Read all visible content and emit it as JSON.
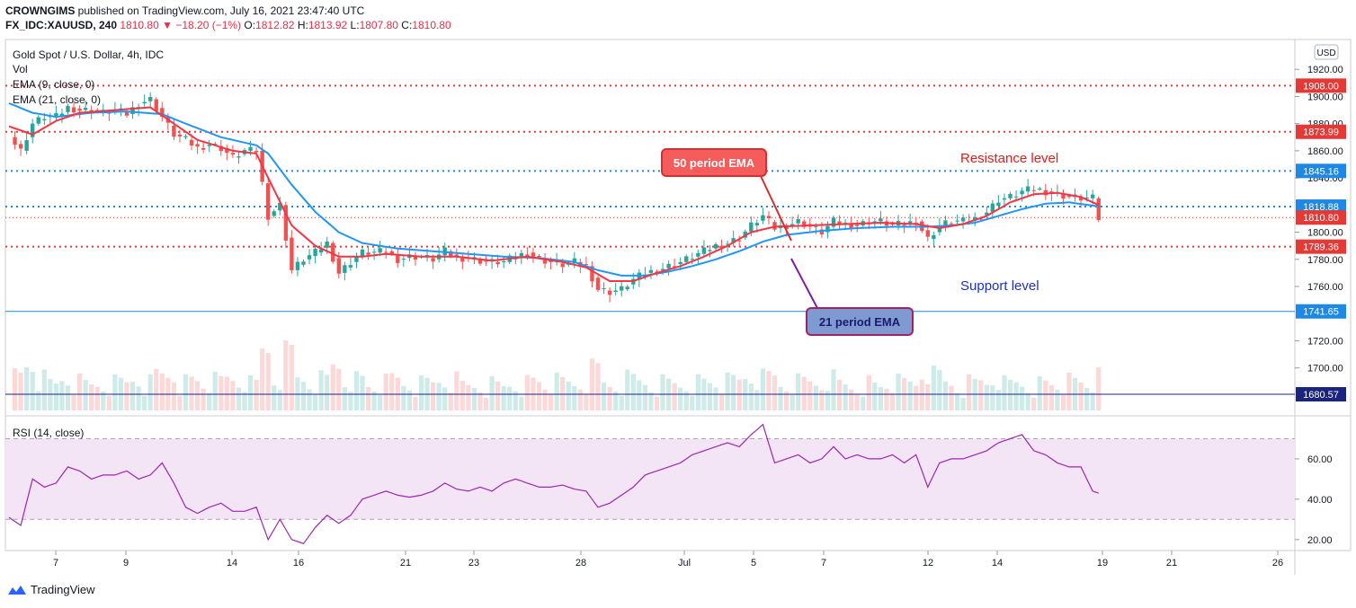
{
  "header": {
    "line1_author": "CROWNGIMS",
    "line1_rest": "published on TradingView.com, July 16, 2021 23:47:40 UTC",
    "symbol": "FX_IDC:XAUUSD, 240",
    "price": "1810.80",
    "change": "−18.20 (−1%)",
    "o_label": "O:",
    "o_value": "1812.82",
    "h_label": "H:",
    "h_value": "1813.92",
    "l_label": "L:",
    "l_value": "1807.80",
    "c_label": "C:",
    "c_value": "1810.80"
  },
  "legend": {
    "title": "Gold Spot / U.S. Dollar, 4h, IDC",
    "vol": "Vol",
    "ema9": "EMA (9, close, 0)",
    "ema21": "EMA (21, close, 0)",
    "rsi": "RSI (14, close)",
    "currency": "USD"
  },
  "annotations": {
    "ema50_label": "50 period EMA",
    "ema21_label": "21 period EMA",
    "resistance": "Resistance level",
    "support": "Support level"
  },
  "footer": {
    "brand": "TradingView"
  },
  "colors": {
    "up": "#26a69a",
    "down": "#ef5350",
    "ema_fast": "#f23645",
    "ema_slow": "#2196f3",
    "rsi": "#9c27b0",
    "rsi_band": "#f3e5f5",
    "level_red": "#e53935",
    "level_blue": "#1e88e5",
    "level_navy": "#1a237e",
    "annot_red": "#f75c5c",
    "annot_blue": "#7f9ad0"
  },
  "chart_data": {
    "type": "candlestick",
    "price_axis": {
      "min": 1670,
      "max": 1940,
      "ticks": [
        "1920.00",
        "1900.00",
        "1880.00",
        "1860.00",
        "1840.00",
        "1800.00",
        "1780.00",
        "1760.00",
        "1720.00",
        "1700.00"
      ],
      "tick_values": [
        1920,
        1900,
        1880,
        1860,
        1840,
        1800,
        1780,
        1760,
        1720,
        1700
      ]
    },
    "x_axis": {
      "labels": [
        "7",
        "9",
        "14",
        "16",
        "21",
        "23",
        "28",
        "Jul",
        "5",
        "7",
        "12",
        "14",
        "19",
        "21",
        "26"
      ]
    },
    "levels": [
      {
        "value": 1908.0,
        "label": "1908.00",
        "style": "dotted",
        "color": "red"
      },
      {
        "value": 1873.99,
        "label": "1873.99",
        "style": "dotted",
        "color": "red"
      },
      {
        "value": 1845.16,
        "label": "1845.16",
        "style": "dotted",
        "color": "blue"
      },
      {
        "value": 1818.88,
        "label": "1818.88",
        "style": "dotted",
        "color": "blue"
      },
      {
        "value": 1810.8,
        "label": "1810.80",
        "style": "dotted-thin",
        "color": "red"
      },
      {
        "value": 1789.36,
        "label": "1789.36",
        "style": "dotted",
        "color": "red"
      },
      {
        "value": 1741.65,
        "label": "1741.65",
        "style": "solid",
        "color": "blue"
      },
      {
        "value": 1680.57,
        "label": "1680.57",
        "style": "solid",
        "color": "navy"
      }
    ],
    "price_path": [
      [
        0,
        1870
      ],
      [
        2,
        1860
      ],
      [
        4,
        1880
      ],
      [
        6,
        1885
      ],
      [
        8,
        1885
      ],
      [
        10,
        1892
      ],
      [
        12,
        1890
      ],
      [
        14,
        1890
      ],
      [
        16,
        1888
      ],
      [
        18,
        1890
      ],
      [
        20,
        1887
      ],
      [
        22,
        1895
      ],
      [
        24,
        1898
      ],
      [
        26,
        1885
      ],
      [
        28,
        1872
      ],
      [
        30,
        1868
      ],
      [
        32,
        1862
      ],
      [
        34,
        1865
      ],
      [
        36,
        1862
      ],
      [
        38,
        1855
      ],
      [
        40,
        1860
      ],
      [
        42,
        1860
      ],
      [
        44,
        1812
      ],
      [
        46,
        1820
      ],
      [
        48,
        1772
      ],
      [
        50,
        1780
      ],
      [
        52,
        1785
      ],
      [
        54,
        1792
      ],
      [
        56,
        1770
      ],
      [
        58,
        1778
      ],
      [
        60,
        1785
      ],
      [
        62,
        1785
      ],
      [
        64,
        1786
      ],
      [
        66,
        1780
      ],
      [
        68,
        1782
      ],
      [
        70,
        1782
      ],
      [
        72,
        1780
      ],
      [
        74,
        1786
      ],
      [
        76,
        1781
      ],
      [
        78,
        1781
      ],
      [
        80,
        1779
      ],
      [
        82,
        1778
      ],
      [
        84,
        1778
      ],
      [
        86,
        1782
      ],
      [
        88,
        1785
      ],
      [
        90,
        1780
      ],
      [
        92,
        1778
      ],
      [
        94,
        1776
      ],
      [
        96,
        1778
      ],
      [
        98,
        1775
      ],
      [
        100,
        1758
      ],
      [
        102,
        1756
      ],
      [
        104,
        1758
      ],
      [
        106,
        1765
      ],
      [
        108,
        1770
      ],
      [
        110,
        1772
      ],
      [
        112,
        1775
      ],
      [
        114,
        1778
      ],
      [
        116,
        1782
      ],
      [
        118,
        1786
      ],
      [
        120,
        1790
      ],
      [
        122,
        1792
      ],
      [
        124,
        1796
      ],
      [
        126,
        1805
      ],
      [
        128,
        1812
      ],
      [
        130,
        1803
      ],
      [
        132,
        1805
      ],
      [
        134,
        1808
      ],
      [
        136,
        1804
      ],
      [
        138,
        1800
      ],
      [
        140,
        1808
      ],
      [
        142,
        1806
      ],
      [
        144,
        1805
      ],
      [
        146,
        1808
      ],
      [
        148,
        1808
      ],
      [
        150,
        1805
      ],
      [
        152,
        1806
      ],
      [
        154,
        1808
      ],
      [
        156,
        1795
      ],
      [
        158,
        1805
      ],
      [
        160,
        1808
      ],
      [
        162,
        1808
      ],
      [
        164,
        1810
      ],
      [
        166,
        1815
      ],
      [
        168,
        1824
      ],
      [
        170,
        1826
      ],
      [
        172,
        1830
      ],
      [
        174,
        1832
      ],
      [
        176,
        1830
      ],
      [
        178,
        1828
      ],
      [
        180,
        1826
      ],
      [
        182,
        1825
      ],
      [
        184,
        1825
      ],
      [
        185,
        1810
      ]
    ],
    "ema9_path": [
      [
        0,
        1878
      ],
      [
        4,
        1872
      ],
      [
        8,
        1882
      ],
      [
        12,
        1888
      ],
      [
        18,
        1890
      ],
      [
        24,
        1892
      ],
      [
        28,
        1880
      ],
      [
        32,
        1868
      ],
      [
        38,
        1860
      ],
      [
        42,
        1858
      ],
      [
        44,
        1840
      ],
      [
        48,
        1805
      ],
      [
        52,
        1790
      ],
      [
        56,
        1782
      ],
      [
        60,
        1782
      ],
      [
        64,
        1784
      ],
      [
        70,
        1782
      ],
      [
        76,
        1782
      ],
      [
        82,
        1779
      ],
      [
        88,
        1782
      ],
      [
        94,
        1778
      ],
      [
        98,
        1774
      ],
      [
        102,
        1764
      ],
      [
        106,
        1764
      ],
      [
        110,
        1770
      ],
      [
        114,
        1775
      ],
      [
        118,
        1782
      ],
      [
        122,
        1790
      ],
      [
        126,
        1800
      ],
      [
        130,
        1804
      ],
      [
        136,
        1805
      ],
      [
        142,
        1806
      ],
      [
        148,
        1807
      ],
      [
        154,
        1806
      ],
      [
        158,
        1803
      ],
      [
        162,
        1806
      ],
      [
        166,
        1812
      ],
      [
        170,
        1822
      ],
      [
        174,
        1828
      ],
      [
        178,
        1829
      ],
      [
        182,
        1826
      ],
      [
        185,
        1820
      ]
    ],
    "ema21_path": [
      [
        0,
        1895
      ],
      [
        4,
        1888
      ],
      [
        8,
        1885
      ],
      [
        14,
        1888
      ],
      [
        20,
        1889
      ],
      [
        26,
        1887
      ],
      [
        30,
        1880
      ],
      [
        36,
        1870
      ],
      [
        42,
        1864
      ],
      [
        44,
        1858
      ],
      [
        48,
        1835
      ],
      [
        52,
        1815
      ],
      [
        56,
        1800
      ],
      [
        60,
        1792
      ],
      [
        66,
        1788
      ],
      [
        72,
        1786
      ],
      [
        78,
        1784
      ],
      [
        84,
        1782
      ],
      [
        90,
        1781
      ],
      [
        96,
        1778
      ],
      [
        100,
        1772
      ],
      [
        104,
        1768
      ],
      [
        108,
        1768
      ],
      [
        112,
        1771
      ],
      [
        116,
        1775
      ],
      [
        120,
        1780
      ],
      [
        124,
        1786
      ],
      [
        128,
        1793
      ],
      [
        132,
        1798
      ],
      [
        138,
        1801
      ],
      [
        144,
        1803
      ],
      [
        150,
        1804
      ],
      [
        156,
        1804
      ],
      [
        160,
        1805
      ],
      [
        164,
        1807
      ],
      [
        168,
        1812
      ],
      [
        172,
        1817
      ],
      [
        176,
        1821
      ],
      [
        180,
        1822
      ],
      [
        185,
        1819
      ]
    ],
    "rsi": {
      "min": 15,
      "max": 80,
      "ticks": [
        "60.00",
        "40.00",
        "20.00"
      ],
      "tick_values": [
        60,
        40,
        20
      ],
      "upper": 70,
      "lower": 30,
      "path": [
        [
          0,
          31
        ],
        [
          2,
          27
        ],
        [
          4,
          50
        ],
        [
          6,
          46
        ],
        [
          8,
          48
        ],
        [
          10,
          56
        ],
        [
          12,
          54
        ],
        [
          14,
          50
        ],
        [
          16,
          52
        ],
        [
          18,
          52
        ],
        [
          20,
          54
        ],
        [
          22,
          50
        ],
        [
          24,
          52
        ],
        [
          26,
          58
        ],
        [
          28,
          48
        ],
        [
          30,
          36
        ],
        [
          32,
          33
        ],
        [
          34,
          36
        ],
        [
          36,
          38
        ],
        [
          38,
          34
        ],
        [
          40,
          34
        ],
        [
          42,
          36
        ],
        [
          44,
          20
        ],
        [
          46,
          30
        ],
        [
          48,
          20
        ],
        [
          50,
          18
        ],
        [
          52,
          26
        ],
        [
          54,
          32
        ],
        [
          56,
          28
        ],
        [
          58,
          32
        ],
        [
          60,
          40
        ],
        [
          62,
          42
        ],
        [
          64,
          44
        ],
        [
          66,
          42
        ],
        [
          68,
          41
        ],
        [
          70,
          42
        ],
        [
          72,
          44
        ],
        [
          74,
          48
        ],
        [
          76,
          45
        ],
        [
          78,
          44
        ],
        [
          80,
          46
        ],
        [
          82,
          44
        ],
        [
          84,
          48
        ],
        [
          86,
          50
        ],
        [
          88,
          48
        ],
        [
          90,
          46
        ],
        [
          92,
          46
        ],
        [
          94,
          47
        ],
        [
          96,
          45
        ],
        [
          98,
          44
        ],
        [
          100,
          36
        ],
        [
          102,
          38
        ],
        [
          104,
          42
        ],
        [
          106,
          46
        ],
        [
          108,
          52
        ],
        [
          110,
          54
        ],
        [
          112,
          56
        ],
        [
          114,
          58
        ],
        [
          116,
          62
        ],
        [
          118,
          64
        ],
        [
          120,
          66
        ],
        [
          122,
          68
        ],
        [
          124,
          66
        ],
        [
          126,
          72
        ],
        [
          128,
          77
        ],
        [
          130,
          58
        ],
        [
          132,
          60
        ],
        [
          134,
          62
        ],
        [
          136,
          58
        ],
        [
          138,
          60
        ],
        [
          140,
          66
        ],
        [
          142,
          60
        ],
        [
          144,
          62
        ],
        [
          146,
          60
        ],
        [
          148,
          60
        ],
        [
          150,
          62
        ],
        [
          152,
          58
        ],
        [
          154,
          62
        ],
        [
          156,
          46
        ],
        [
          158,
          58
        ],
        [
          160,
          60
        ],
        [
          162,
          60
        ],
        [
          164,
          62
        ],
        [
          166,
          64
        ],
        [
          168,
          68
        ],
        [
          170,
          70
        ],
        [
          172,
          72
        ],
        [
          174,
          64
        ],
        [
          176,
          62
        ],
        [
          178,
          58
        ],
        [
          180,
          56
        ],
        [
          182,
          56
        ],
        [
          184,
          44
        ],
        [
          185,
          43
        ]
      ]
    }
  }
}
